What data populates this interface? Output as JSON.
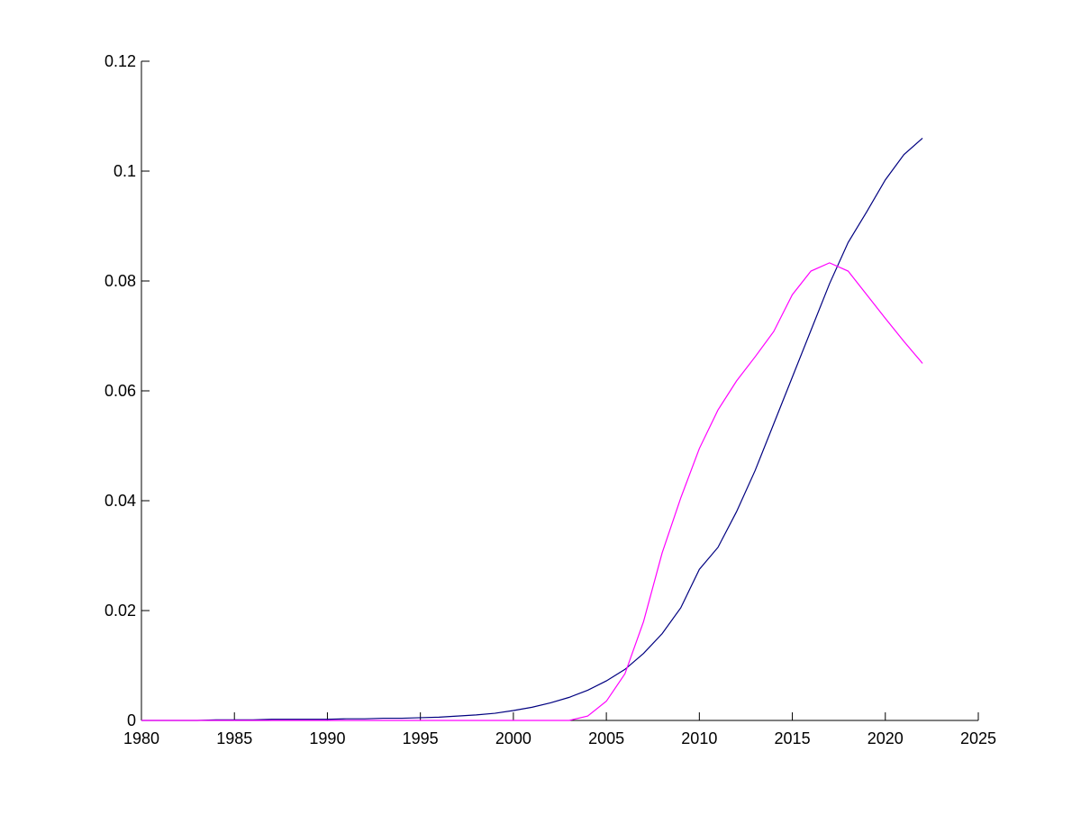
{
  "chart_data": {
    "type": "line",
    "x": [
      1980,
      1981,
      1982,
      1983,
      1984,
      1985,
      1986,
      1987,
      1988,
      1989,
      1990,
      1991,
      1992,
      1993,
      1994,
      1995,
      1996,
      1997,
      1998,
      1999,
      2000,
      2001,
      2002,
      2003,
      2004,
      2005,
      2006,
      2007,
      2008,
      2009,
      2010,
      2011,
      2012,
      2013,
      2014,
      2015,
      2016,
      2017,
      2018,
      2019,
      2020,
      2021,
      2022
    ],
    "series": [
      {
        "color": "#000080",
        "values": [
          0,
          0,
          0,
          0,
          0.0001,
          0.0001,
          0.0001,
          0.0002,
          0.0002,
          0.0002,
          0.0002,
          0.0003,
          0.0003,
          0.0004,
          0.0004,
          0.0005,
          0.0006,
          0.0008,
          0.001,
          0.0013,
          0.0018,
          0.0024,
          0.0032,
          0.0042,
          0.0055,
          0.0072,
          0.0093,
          0.0122,
          0.0158,
          0.0205,
          0.0275,
          0.0315,
          0.038,
          0.0455,
          0.054,
          0.0625,
          0.071,
          0.0795,
          0.087,
          0.0926,
          0.0984,
          0.103,
          0.106
        ]
      },
      {
        "color": "#ff00ff",
        "values": [
          0,
          0,
          0,
          0,
          0,
          0,
          0,
          0,
          0,
          0,
          0,
          0,
          0,
          0,
          0,
          0,
          0,
          0,
          0,
          0,
          0,
          0,
          0,
          0,
          0.0008,
          0.0035,
          0.0085,
          0.018,
          0.0305,
          0.0405,
          0.0495,
          0.0565,
          0.0618,
          0.0662,
          0.0708,
          0.0775,
          0.0818,
          0.0833,
          0.0818,
          0.0775,
          0.0732,
          0.069,
          0.065
        ]
      }
    ],
    "xlim": [
      1980,
      2025
    ],
    "xticks": [
      1980,
      1985,
      1990,
      1995,
      2000,
      2005,
      2010,
      2015,
      2020,
      2025
    ],
    "ylim": [
      0,
      0.12
    ],
    "yticks": [
      0,
      0.02,
      0.04,
      0.06,
      0.08,
      0.1,
      0.12
    ]
  }
}
